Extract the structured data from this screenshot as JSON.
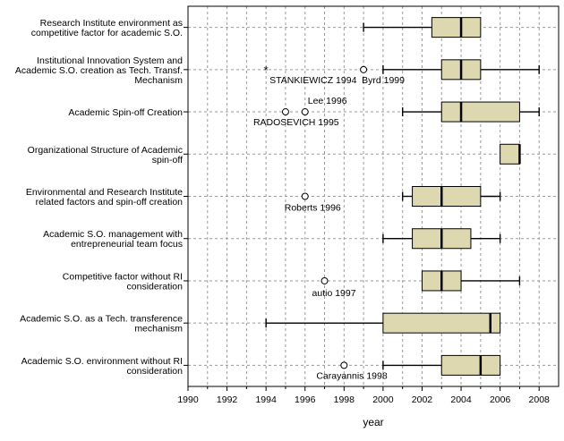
{
  "chart_data": {
    "type": "boxplot",
    "orientation": "horizontal",
    "xlabel": "year",
    "xlim": [
      1990,
      2009
    ],
    "xticks": [
      1990,
      1992,
      1994,
      1996,
      1998,
      2000,
      2002,
      2004,
      2006,
      2008
    ],
    "grid": true,
    "box_color": "#ddd8b0",
    "categories": [
      {
        "label": [
          "Research Institute environment as",
          "competitive factor for academic S.O."
        ],
        "whisker_low": 1999,
        "q1": 2002.5,
        "median": 2004,
        "q3": 2005,
        "whisker_high": 2005,
        "outliers": []
      },
      {
        "label": [
          "Institutional Innovation System and",
          "Academic S.O. creation as Tech. Transf.",
          "Mechanism"
        ],
        "whisker_low": 2000,
        "q1": 2003,
        "median": 2004,
        "q3": 2005,
        "whisker_high": 2008,
        "outliers": [
          {
            "value": 1994,
            "marker": "star",
            "label": "STANKIEWICZ 1994"
          },
          {
            "value": 1999,
            "marker": "circle",
            "label": "Byrd 1999"
          }
        ]
      },
      {
        "label": [
          "Academic Spin-off Creation"
        ],
        "whisker_low": 2001,
        "q1": 2003,
        "median": 2004,
        "q3": 2007,
        "whisker_high": 2008,
        "outliers": [
          {
            "value": 1995,
            "marker": "circle",
            "label": "RADOSEVICH 1995"
          },
          {
            "value": 1996,
            "marker": "circle",
            "label": "Lee 1996"
          }
        ]
      },
      {
        "label": [
          "Organizational Structure of Academic",
          "spin-off"
        ],
        "whisker_low": 2006,
        "q1": 2006,
        "median": 2007,
        "q3": 2007,
        "whisker_high": 2007,
        "outliers": []
      },
      {
        "label": [
          "Environmental and Research Institute",
          "related factors and spin-off creation"
        ],
        "whisker_low": 2001,
        "q1": 2001.5,
        "median": 2003,
        "q3": 2005,
        "whisker_high": 2006,
        "outliers": [
          {
            "value": 1996,
            "marker": "circle",
            "label": "Roberts 1996"
          }
        ]
      },
      {
        "label": [
          "Academic S.O. management with",
          "entrepreneurial team focus"
        ],
        "whisker_low": 2000,
        "q1": 2001.5,
        "median": 2003,
        "q3": 2004.5,
        "whisker_high": 2006,
        "outliers": []
      },
      {
        "label": [
          "Competitive factor without RI",
          "consideration"
        ],
        "whisker_low": 2002,
        "q1": 2002,
        "median": 2003,
        "q3": 2004,
        "whisker_high": 2007,
        "outliers": [
          {
            "value": 1997,
            "marker": "circle",
            "label": "autio 1997"
          }
        ]
      },
      {
        "label": [
          "Academic S.O. as a Tech. transference",
          "mechanism"
        ],
        "whisker_low": 1994,
        "q1": 2000,
        "median": 2005.5,
        "q3": 2006,
        "whisker_high": 2006,
        "outliers": []
      },
      {
        "label": [
          "Academic S.O. environment without RI",
          "consideration"
        ],
        "whisker_low": 2000,
        "q1": 2003,
        "median": 2005,
        "q3": 2006,
        "whisker_high": 2006,
        "outliers": [
          {
            "value": 1998,
            "marker": "circle",
            "label": "Carayannis 1998"
          }
        ]
      }
    ]
  }
}
